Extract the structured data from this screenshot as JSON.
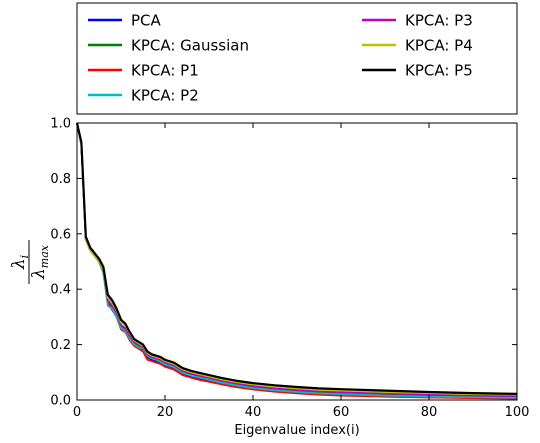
{
  "chart_data": {
    "type": "line",
    "title": "",
    "xlabel": "Eigenvalue index(i)",
    "ylabel": {
      "numerator": "λ",
      "numerator_sub": "i",
      "denominator": "λ",
      "denominator_sub": "max"
    },
    "xlim": [
      0,
      100
    ],
    "ylim": [
      0,
      1.0
    ],
    "xticks": [
      "0",
      "20",
      "40",
      "60",
      "80",
      "100"
    ],
    "yticks": [
      "0.0",
      "0.2",
      "0.4",
      "0.6",
      "0.8",
      "1.0"
    ],
    "legend": {
      "placement": "top, outside",
      "columns": 2
    },
    "x": [
      0,
      1,
      2,
      3,
      4,
      5,
      6,
      7,
      8,
      9,
      10,
      11,
      12,
      13,
      14,
      15,
      16,
      17,
      18,
      19,
      20,
      22,
      24,
      26,
      28,
      30,
      33,
      36,
      40,
      45,
      50,
      55,
      60,
      70,
      80,
      90,
      100
    ],
    "series": [
      {
        "name": "PCA",
        "color": "#0000ff",
        "values": [
          1.0,
          0.92,
          0.58,
          0.54,
          0.52,
          0.5,
          0.46,
          0.35,
          0.33,
          0.3,
          0.26,
          0.25,
          0.22,
          0.2,
          0.19,
          0.18,
          0.155,
          0.145,
          0.14,
          0.135,
          0.125,
          0.115,
          0.095,
          0.085,
          0.077,
          0.07,
          0.06,
          0.05,
          0.04,
          0.032,
          0.026,
          0.021,
          0.018,
          0.013,
          0.01,
          0.008,
          0.006
        ]
      },
      {
        "name": "KPCA: Gaussian",
        "color": "#008000",
        "values": [
          1.0,
          0.92,
          0.58,
          0.54,
          0.52,
          0.5,
          0.46,
          0.355,
          0.335,
          0.31,
          0.265,
          0.255,
          0.225,
          0.205,
          0.195,
          0.185,
          0.16,
          0.15,
          0.145,
          0.14,
          0.13,
          0.12,
          0.1,
          0.09,
          0.082,
          0.075,
          0.064,
          0.055,
          0.045,
          0.037,
          0.031,
          0.026,
          0.023,
          0.018,
          0.014,
          0.011,
          0.009
        ]
      },
      {
        "name": "KPCA: P1",
        "color": "#ff0000",
        "values": [
          1.0,
          0.92,
          0.58,
          0.54,
          0.52,
          0.5,
          0.46,
          0.35,
          0.325,
          0.3,
          0.255,
          0.245,
          0.215,
          0.195,
          0.185,
          0.175,
          0.145,
          0.14,
          0.135,
          0.13,
          0.12,
          0.11,
          0.09,
          0.08,
          0.072,
          0.066,
          0.056,
          0.047,
          0.038,
          0.03,
          0.024,
          0.019,
          0.016,
          0.012,
          0.009,
          0.007,
          0.005
        ]
      },
      {
        "name": "KPCA: P2",
        "color": "#00bfbf",
        "values": [
          1.0,
          0.92,
          0.58,
          0.54,
          0.52,
          0.5,
          0.46,
          0.34,
          0.33,
          0.3,
          0.26,
          0.25,
          0.22,
          0.2,
          0.19,
          0.185,
          0.16,
          0.15,
          0.145,
          0.138,
          0.128,
          0.118,
          0.098,
          0.088,
          0.08,
          0.073,
          0.062,
          0.053,
          0.043,
          0.035,
          0.029,
          0.024,
          0.021,
          0.016,
          0.012,
          0.01,
          0.008
        ]
      },
      {
        "name": "KPCA: P3",
        "color": "#bf00bf",
        "values": [
          1.0,
          0.92,
          0.58,
          0.54,
          0.52,
          0.5,
          0.47,
          0.36,
          0.34,
          0.315,
          0.27,
          0.26,
          0.23,
          0.21,
          0.2,
          0.19,
          0.165,
          0.155,
          0.15,
          0.145,
          0.135,
          0.125,
          0.105,
          0.095,
          0.087,
          0.08,
          0.069,
          0.06,
          0.05,
          0.042,
          0.036,
          0.031,
          0.028,
          0.023,
          0.019,
          0.016,
          0.014
        ]
      },
      {
        "name": "KPCA: P4",
        "color": "#bfbf00",
        "values": [
          1.0,
          0.92,
          0.58,
          0.54,
          0.52,
          0.5,
          0.47,
          0.37,
          0.35,
          0.325,
          0.28,
          0.27,
          0.24,
          0.215,
          0.205,
          0.195,
          0.17,
          0.16,
          0.155,
          0.15,
          0.14,
          0.13,
          0.11,
          0.1,
          0.092,
          0.085,
          0.074,
          0.065,
          0.056,
          0.048,
          0.042,
          0.037,
          0.034,
          0.029,
          0.025,
          0.021,
          0.019
        ]
      },
      {
        "name": "KPCA: P5",
        "color": "#000000",
        "values": [
          1.0,
          0.93,
          0.59,
          0.55,
          0.53,
          0.51,
          0.48,
          0.38,
          0.36,
          0.33,
          0.29,
          0.275,
          0.245,
          0.22,
          0.21,
          0.2,
          0.175,
          0.165,
          0.16,
          0.155,
          0.145,
          0.135,
          0.115,
          0.105,
          0.097,
          0.09,
          0.079,
          0.07,
          0.061,
          0.053,
          0.047,
          0.042,
          0.039,
          0.034,
          0.029,
          0.025,
          0.022
        ]
      }
    ]
  }
}
